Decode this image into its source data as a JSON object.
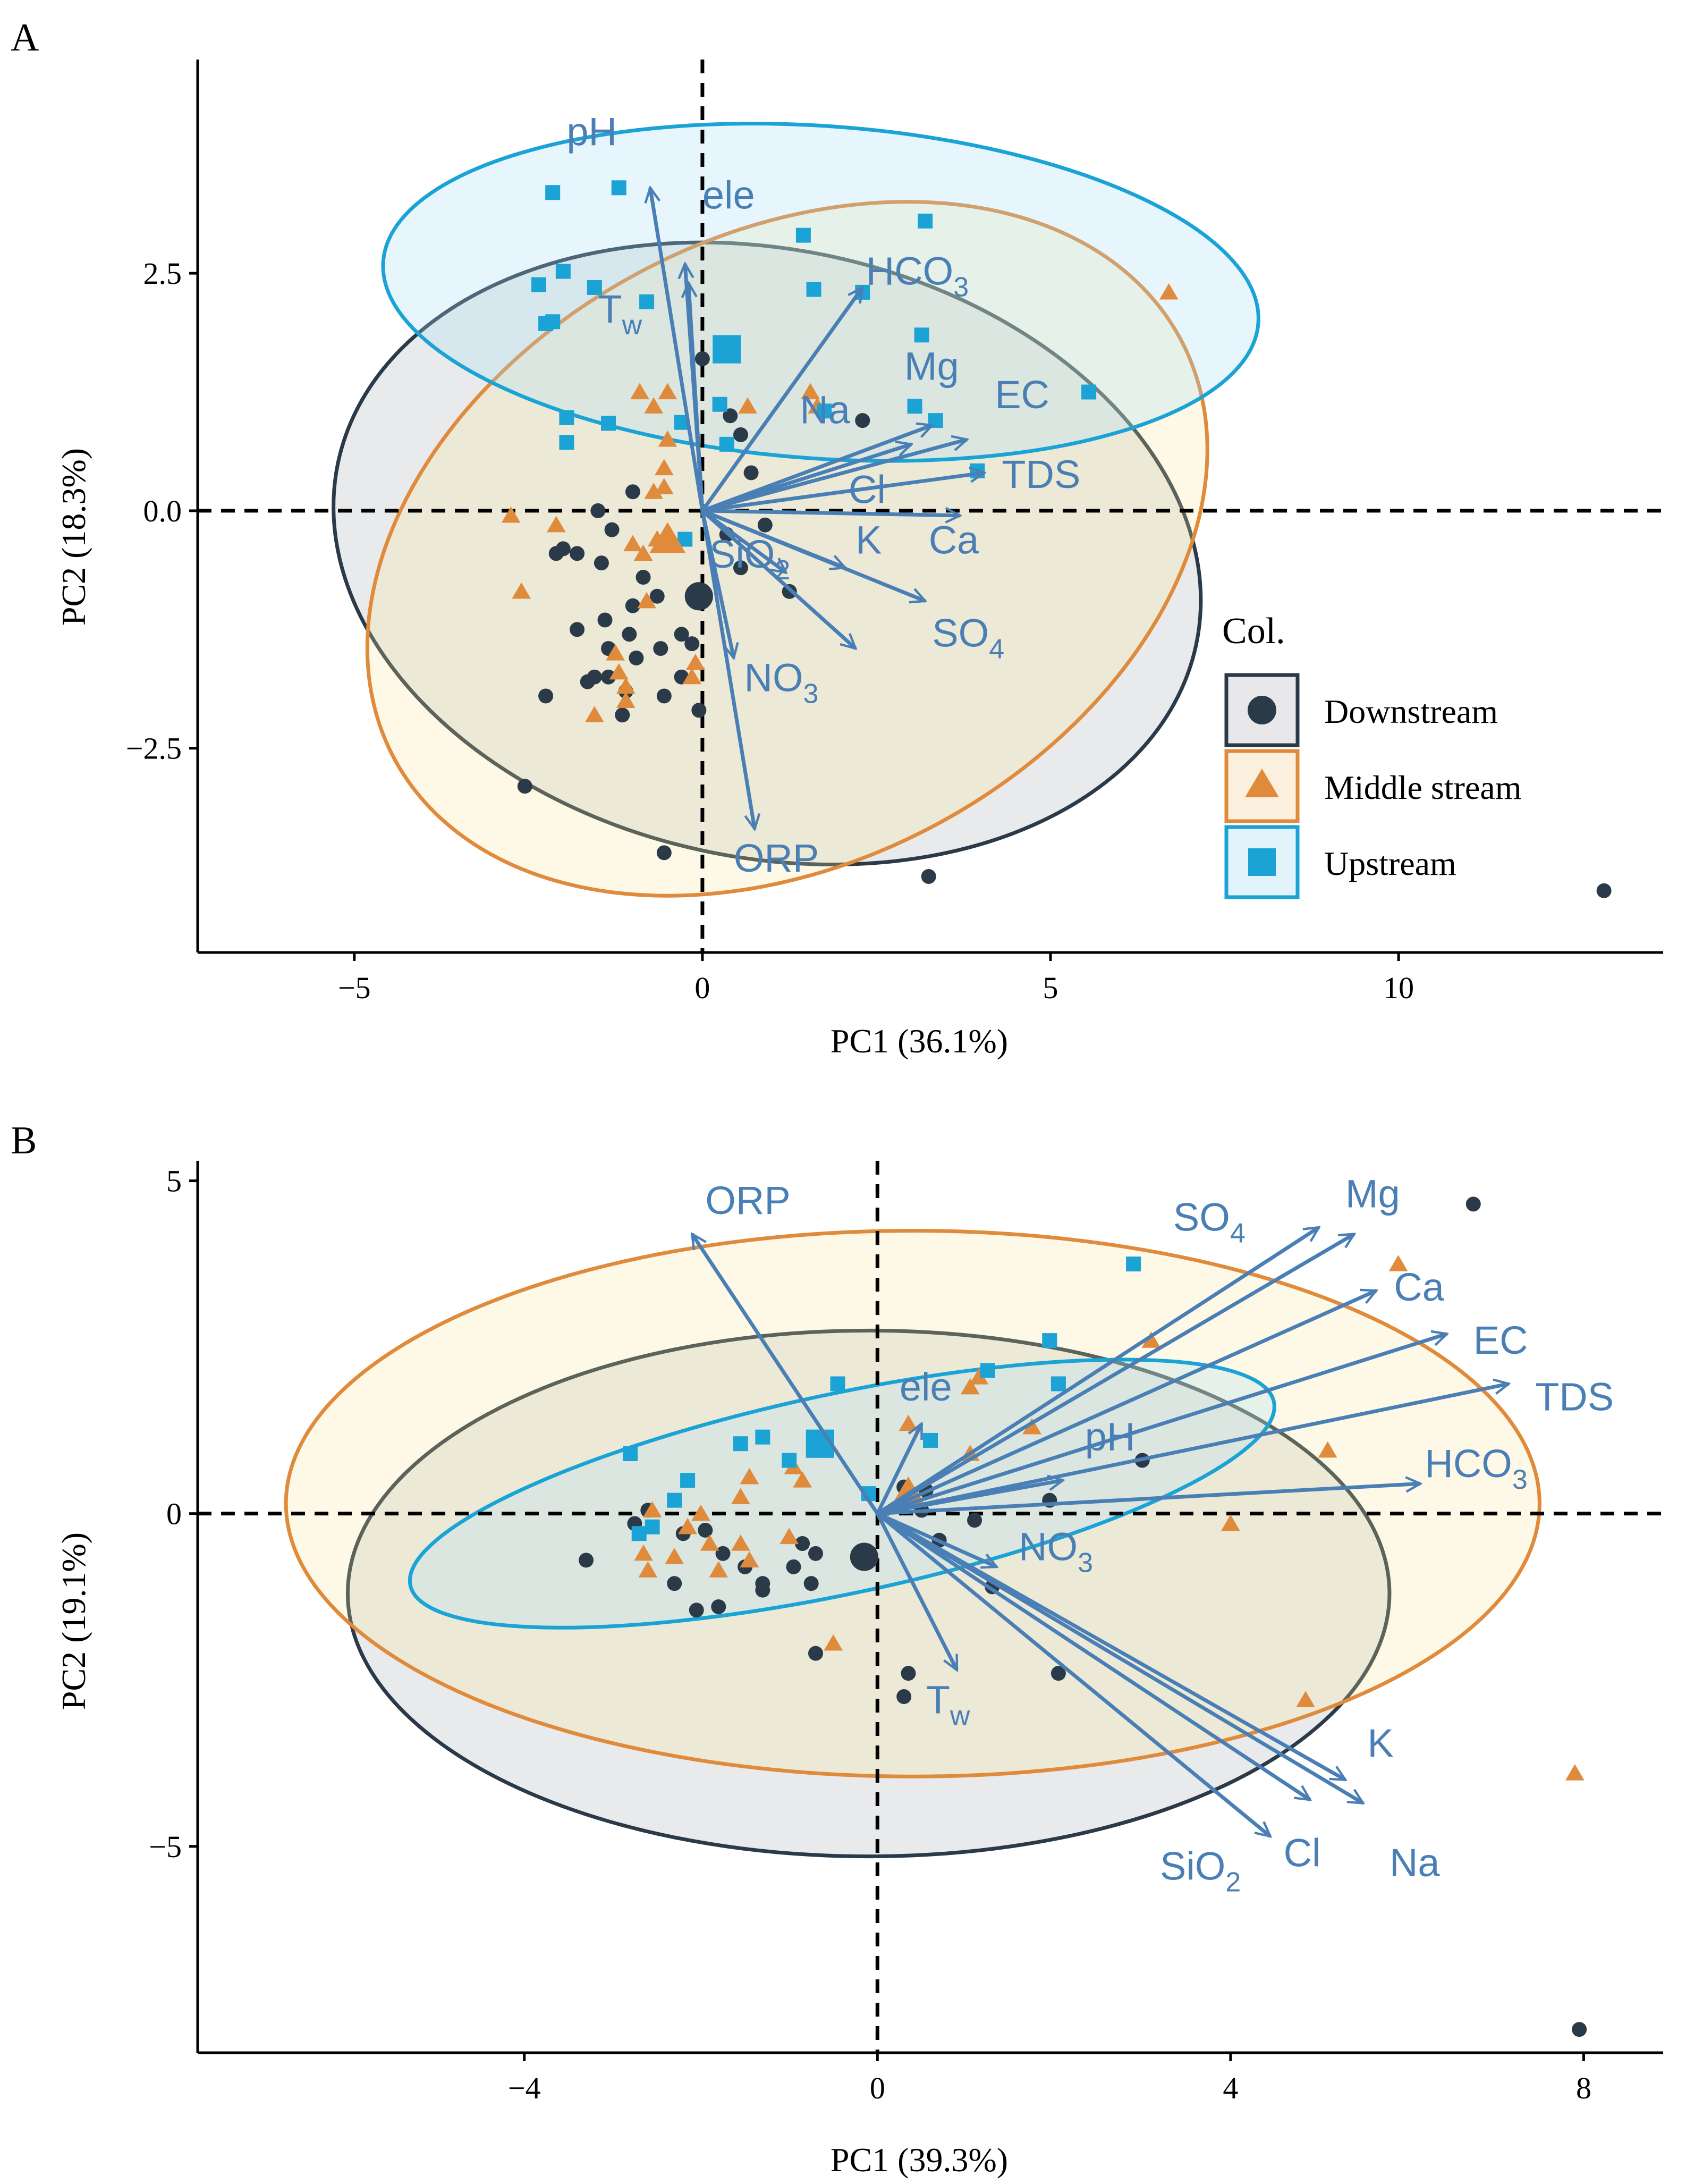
{
  "colors": {
    "downstream": "#2b3a48",
    "middle": "#e08a3c",
    "upstream": "#1ba3d6",
    "arrow": "#4a7fb5",
    "axis": "#000000"
  },
  "legend": {
    "title": "Col.",
    "items": [
      {
        "key": "downstream",
        "label": "Downstream",
        "shape": "circle"
      },
      {
        "key": "middle",
        "label": "Middle stream",
        "shape": "triangle"
      },
      {
        "key": "upstream",
        "label": "Upstream",
        "shape": "square"
      }
    ]
  },
  "chart_data": [
    {
      "panel": "A",
      "type": "scatter",
      "subtype": "pca-biplot",
      "xlabel": "PC1 (36.1%)",
      "ylabel": "PC2 (18.3%)",
      "xlim": [
        -7.25,
        13.8
      ],
      "ylim": [
        -4.65,
        4.75
      ],
      "xticks": [
        -5,
        0,
        5,
        10
      ],
      "yticks": [
        -2.5,
        0.0,
        2.5
      ],
      "ytick_labels": [
        "−2.5",
        "0.0",
        "2.5"
      ],
      "xtick_labels": [
        "−5",
        "0",
        "5",
        "10"
      ],
      "ellipses": [
        {
          "group": "downstream",
          "cx": 0.93,
          "cy": -0.45,
          "rx": 6.3,
          "ry": 3.2,
          "angle": -12
        },
        {
          "group": "middle",
          "cx": 1.22,
          "cy": -0.4,
          "rx": 6.4,
          "ry": 3.3,
          "angle": 28
        },
        {
          "group": "upstream",
          "cx": 1.7,
          "cy": 2.3,
          "rx": 6.3,
          "ry": 1.75,
          "angle": -4
        }
      ],
      "centroids": [
        {
          "group": "downstream",
          "x": -0.05,
          "y": -0.9
        },
        {
          "group": "middle",
          "x": -0.5,
          "y": -0.3
        },
        {
          "group": "upstream",
          "x": 0.35,
          "y": 1.7
        }
      ],
      "loadings": [
        {
          "label": "pH",
          "x": -0.75,
          "y": 3.4,
          "lx": -1.95,
          "ly": 3.85
        },
        {
          "label": "ele",
          "x": -0.25,
          "y": 2.6,
          "lx": 0.0,
          "ly": 3.18
        },
        {
          "label": "HCO",
          "sub": "3",
          "x": 2.3,
          "y": 2.35,
          "lx": 2.35,
          "ly": 2.38
        },
        {
          "label": "T",
          "sub": "w",
          "x": -0.2,
          "y": 2.4,
          "lx": -1.5,
          "ly": 1.98
        },
        {
          "label": "Mg",
          "x": 3.3,
          "y": 0.9,
          "lx": 2.9,
          "ly": 1.38
        },
        {
          "label": "EC",
          "x": 3.8,
          "y": 0.75,
          "lx": 4.2,
          "ly": 1.08
        },
        {
          "label": "Na",
          "x": 3.0,
          "y": 0.7,
          "lx": 1.4,
          "ly": 0.92
        },
        {
          "label": "TDS",
          "x": 4.05,
          "y": 0.4,
          "lx": 4.3,
          "ly": 0.24
        },
        {
          "label": "Cl",
          "x": 3.7,
          "y": -0.05,
          "lx": 2.1,
          "ly": 0.08
        },
        {
          "label": "K",
          "x": 2.05,
          "y": -0.6,
          "lx": 2.2,
          "ly": -0.45
        },
        {
          "label": "Ca",
          "x": 3.2,
          "y": -0.95,
          "lx": 3.25,
          "ly": -0.45
        },
        {
          "label": "SiO",
          "sub": "2",
          "x": 1.2,
          "y": -0.65,
          "lx": 0.1,
          "ly": -0.6
        },
        {
          "label": "SO",
          "sub": "4",
          "x": 2.2,
          "y": -1.45,
          "lx": 3.3,
          "ly": -1.43
        },
        {
          "label": "NO",
          "sub": "3",
          "x": 0.45,
          "y": -1.55,
          "lx": 0.6,
          "ly": -1.9
        },
        {
          "label": "ORP",
          "x": 0.75,
          "y": -3.35,
          "lx": 0.45,
          "ly": -3.8
        }
      ],
      "points": {
        "downstream": [
          [
            0.0,
            1.6
          ],
          [
            2.3,
            0.95
          ],
          [
            -1.0,
            0.2
          ],
          [
            -1.5,
            0.0
          ],
          [
            -1.3,
            -0.2
          ],
          [
            -2.0,
            -0.4
          ],
          [
            -2.1,
            -0.45
          ],
          [
            -1.8,
            -0.45
          ],
          [
            -1.45,
            -0.55
          ],
          [
            -0.85,
            -0.7
          ],
          [
            -0.65,
            -0.9
          ],
          [
            -1.0,
            -1.0
          ],
          [
            -1.4,
            -1.15
          ],
          [
            -1.05,
            -1.3
          ],
          [
            -1.8,
            -1.25
          ],
          [
            -0.3,
            -1.3
          ],
          [
            -0.15,
            -1.4
          ],
          [
            -1.35,
            -1.45
          ],
          [
            -0.6,
            -1.45
          ],
          [
            -0.95,
            -1.55
          ],
          [
            -1.55,
            -1.75
          ],
          [
            -1.35,
            -1.75
          ],
          [
            -0.3,
            -1.75
          ],
          [
            -1.65,
            -1.8
          ],
          [
            -1.1,
            -1.9
          ],
          [
            -0.55,
            -1.95
          ],
          [
            -2.25,
            -1.95
          ],
          [
            -0.05,
            -2.1
          ],
          [
            -1.15,
            -2.15
          ],
          [
            -2.55,
            -2.9
          ],
          [
            -0.55,
            -3.6
          ],
          [
            3.25,
            -3.85
          ],
          [
            12.95,
            -4.0
          ],
          [
            0.4,
            1.0
          ],
          [
            0.55,
            0.8
          ],
          [
            0.7,
            0.4
          ],
          [
            0.9,
            -0.15
          ],
          [
            0.35,
            -0.25
          ],
          [
            0.55,
            -0.6
          ],
          [
            1.25,
            -0.85
          ],
          [
            0.0,
            -0.9
          ],
          [
            -0.6,
            -0.35
          ]
        ],
        "middle": [
          [
            6.7,
            2.3
          ],
          [
            1.55,
            1.25
          ],
          [
            -0.5,
            1.25
          ],
          [
            -0.9,
            1.25
          ],
          [
            -0.7,
            1.1
          ],
          [
            0.65,
            1.1
          ],
          [
            1.65,
            1.1
          ],
          [
            -0.5,
            0.75
          ],
          [
            -0.55,
            0.45
          ],
          [
            -0.55,
            0.25
          ],
          [
            -0.7,
            0.2
          ],
          [
            -2.75,
            -0.05
          ],
          [
            -2.1,
            -0.15
          ],
          [
            -0.65,
            -0.3
          ],
          [
            -1.0,
            -0.35
          ],
          [
            -0.85,
            -0.45
          ],
          [
            -2.6,
            -0.85
          ],
          [
            -0.8,
            -0.95
          ],
          [
            -1.25,
            -1.5
          ],
          [
            -1.2,
            -1.7
          ],
          [
            -1.1,
            -1.85
          ],
          [
            -1.1,
            -2.0
          ],
          [
            -1.55,
            -2.15
          ],
          [
            -0.1,
            -1.6
          ],
          [
            -0.15,
            -1.75
          ]
        ],
        "upstream": [
          [
            -2.15,
            3.35
          ],
          [
            -1.2,
            3.4
          ],
          [
            3.2,
            3.05
          ],
          [
            1.45,
            2.9
          ],
          [
            -2.0,
            2.52
          ],
          [
            -2.35,
            2.38
          ],
          [
            -1.55,
            2.35
          ],
          [
            -2.25,
            1.97
          ],
          [
            -2.15,
            1.99
          ],
          [
            -0.8,
            2.2
          ],
          [
            1.6,
            2.33
          ],
          [
            2.3,
            2.3
          ],
          [
            3.15,
            1.85
          ],
          [
            0.35,
            1.7
          ],
          [
            5.55,
            1.25
          ],
          [
            3.05,
            1.1
          ],
          [
            0.25,
            1.12
          ],
          [
            -1.95,
            0.98
          ],
          [
            -1.35,
            0.92
          ],
          [
            -0.3,
            0.93
          ],
          [
            1.75,
            1.05
          ],
          [
            3.35,
            0.95
          ],
          [
            -1.95,
            0.72
          ],
          [
            0.35,
            0.7
          ],
          [
            3.95,
            0.42
          ],
          [
            -0.25,
            -0.3
          ]
        ]
      }
    },
    {
      "panel": "B",
      "type": "scatter",
      "subtype": "pca-biplot",
      "xlabel": "PC1 (39.3%)",
      "ylabel": "PC2 (19.1%)",
      "xlim": [
        -7.7,
        8.9
      ],
      "ylim": [
        -8.1,
        5.3
      ],
      "xticks": [
        -4,
        0,
        4,
        8
      ],
      "yticks": [
        -5,
        0,
        5
      ],
      "ytick_labels": [
        "−5",
        "0",
        "5"
      ],
      "xtick_labels": [
        "−4",
        "0",
        "4",
        "8"
      ],
      "ellipses": [
        {
          "group": "downstream",
          "cx": -0.1,
          "cy": -1.2,
          "rx": 5.9,
          "ry": 3.95,
          "angle": 0
        },
        {
          "group": "middle",
          "cx": 0.4,
          "cy": 0.15,
          "rx": 7.1,
          "ry": 4.1,
          "angle": 0
        },
        {
          "group": "upstream",
          "cx": -0.4,
          "cy": 0.3,
          "rx": 5.0,
          "ry": 1.5,
          "angle": 12
        }
      ],
      "centroids": [
        {
          "group": "downstream",
          "x": -0.15,
          "y": -0.65
        },
        {
          "group": "middle",
          "x": 0.35,
          "y": 0.3
        },
        {
          "group": "upstream",
          "x": -0.65,
          "y": 1.05
        }
      ],
      "loadings": [
        {
          "label": "ORP",
          "x": -2.1,
          "y": 4.2,
          "lx": -1.95,
          "ly": 4.5
        },
        {
          "label": "SO",
          "sub": "4",
          "x": 5.0,
          "y": 4.3,
          "lx": 3.35,
          "ly": 4.25
        },
        {
          "label": "Mg",
          "x": 5.4,
          "y": 4.2,
          "lx": 5.3,
          "ly": 4.6
        },
        {
          "label": "Ca",
          "x": 5.65,
          "y": 3.35,
          "lx": 5.85,
          "ly": 3.2
        },
        {
          "label": "EC",
          "x": 6.45,
          "y": 2.7,
          "lx": 6.75,
          "ly": 2.4
        },
        {
          "label": "TDS",
          "x": 7.15,
          "y": 1.95,
          "lx": 7.45,
          "ly": 1.55
        },
        {
          "label": "ele",
          "x": 0.5,
          "y": 1.35,
          "lx": 0.25,
          "ly": 1.7
        },
        {
          "label": "pH",
          "x": 2.1,
          "y": 0.5,
          "lx": 2.35,
          "ly": 0.95
        },
        {
          "label": "HCO",
          "sub": "3",
          "x": 6.15,
          "y": 0.45,
          "lx": 6.2,
          "ly": 0.55
        },
        {
          "label": "NO",
          "sub": "3",
          "x": 1.35,
          "y": -0.8,
          "lx": 1.6,
          "ly": -0.7
        },
        {
          "label": "T",
          "sub": "w",
          "x": 0.9,
          "y": -2.35,
          "lx": 0.55,
          "ly": -3.0
        },
        {
          "label": "SiO",
          "sub": "2",
          "x": 4.45,
          "y": -4.85,
          "lx": 3.2,
          "ly": -5.5
        },
        {
          "label": "Cl",
          "x": 4.9,
          "y": -4.3,
          "lx": 4.6,
          "ly": -5.3
        },
        {
          "label": "K",
          "x": 5.3,
          "y": -4.0,
          "lx": 5.55,
          "ly": -3.65
        },
        {
          "label": "Na",
          "x": 5.5,
          "y": -4.35,
          "lx": 5.8,
          "ly": -5.45
        }
      ],
      "points": {
        "downstream": [
          [
            6.75,
            4.65
          ],
          [
            7.95,
            -7.75
          ],
          [
            3.0,
            0.8
          ],
          [
            1.95,
            0.2
          ],
          [
            0.3,
            0.4
          ],
          [
            0.5,
            0.05
          ],
          [
            1.1,
            -0.1
          ],
          [
            0.7,
            -0.4
          ],
          [
            1.3,
            -1.1
          ],
          [
            2.05,
            -2.4
          ],
          [
            0.35,
            -2.4
          ],
          [
            0.3,
            -2.75
          ],
          [
            -0.75,
            -1.05
          ],
          [
            -0.7,
            -0.6
          ],
          [
            -0.85,
            -0.45
          ],
          [
            -0.95,
            -0.8
          ],
          [
            -1.3,
            -1.05
          ],
          [
            -1.5,
            -0.8
          ],
          [
            -1.75,
            -0.6
          ],
          [
            -1.95,
            -0.25
          ],
          [
            -2.2,
            -0.3
          ],
          [
            -2.6,
            0.05
          ],
          [
            -2.75,
            -0.15
          ],
          [
            -3.3,
            -0.7
          ],
          [
            -2.3,
            -1.05
          ],
          [
            -2.05,
            -1.45
          ],
          [
            -1.8,
            -1.4
          ],
          [
            -1.3,
            -1.15
          ],
          [
            -0.7,
            -2.1
          ],
          [
            0.55,
            0.35
          ]
        ],
        "middle": [
          [
            7.9,
            -3.9
          ],
          [
            5.9,
            3.75
          ],
          [
            3.1,
            2.6
          ],
          [
            1.15,
            2.05
          ],
          [
            1.05,
            1.9
          ],
          [
            0.35,
            1.35
          ],
          [
            1.75,
            1.3
          ],
          [
            1.05,
            0.9
          ],
          [
            5.1,
            0.95
          ],
          [
            4.0,
            -0.15
          ],
          [
            4.85,
            -2.8
          ],
          [
            -0.5,
            -1.95
          ],
          [
            -1.45,
            0.55
          ],
          [
            -0.95,
            0.7
          ],
          [
            -0.85,
            0.5
          ],
          [
            -1.55,
            0.25
          ],
          [
            -2.0,
            0.0
          ],
          [
            -2.55,
            0.05
          ],
          [
            -2.15,
            -0.2
          ],
          [
            -1.9,
            -0.45
          ],
          [
            -1.55,
            -0.45
          ],
          [
            -1.45,
            -0.7
          ],
          [
            -2.3,
            -0.65
          ],
          [
            -2.65,
            -0.6
          ],
          [
            -2.6,
            -0.85
          ],
          [
            -1.8,
            -0.85
          ],
          [
            -1.0,
            -0.35
          ]
        ],
        "upstream": [
          [
            2.9,
            3.75
          ],
          [
            1.95,
            2.6
          ],
          [
            1.25,
            2.15
          ],
          [
            2.05,
            1.95
          ],
          [
            -0.45,
            1.95
          ],
          [
            0.6,
            1.1
          ],
          [
            -1.3,
            1.15
          ],
          [
            -1.55,
            1.05
          ],
          [
            -2.8,
            0.9
          ],
          [
            -1.0,
            0.8
          ],
          [
            -2.15,
            0.5
          ],
          [
            -2.3,
            0.2
          ],
          [
            -2.55,
            -0.2
          ],
          [
            -2.7,
            -0.3
          ],
          [
            -0.1,
            0.3
          ],
          [
            -0.6,
            0.95
          ]
        ]
      }
    }
  ],
  "panels": [
    {
      "letter": "A"
    },
    {
      "letter": "B"
    }
  ]
}
